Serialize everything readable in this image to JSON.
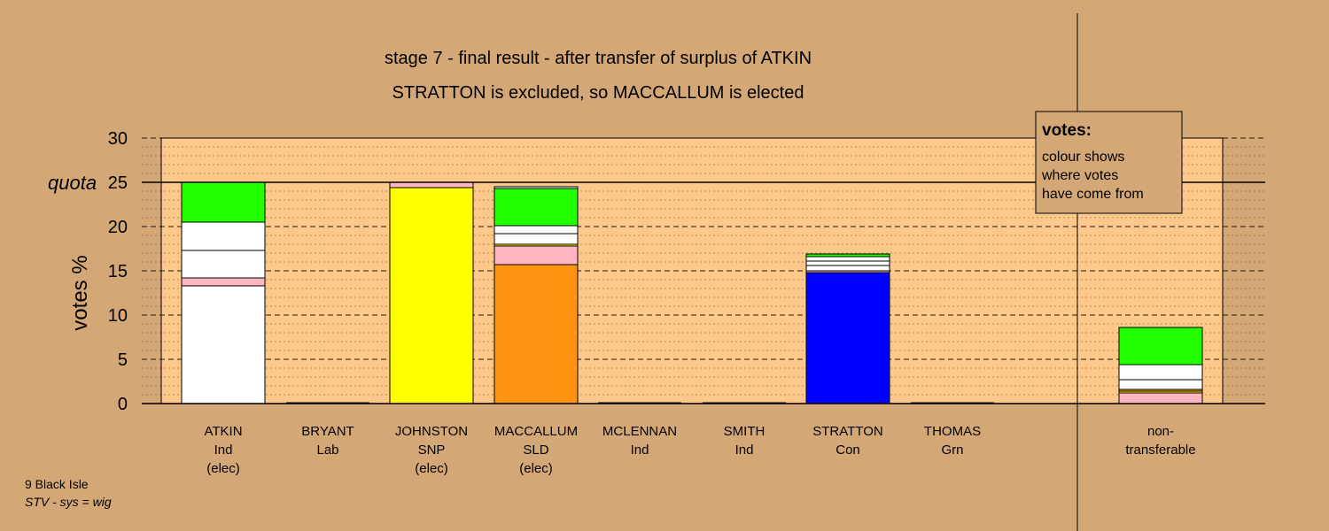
{
  "chart_data": {
    "type": "bar",
    "stacked": true,
    "title": "stage 7 - final result - after transfer of surplus of ATKIN",
    "subtitle": "STRATTON is excluded, so MACCALLUM is elected",
    "ylabel": "votes %",
    "ylim": [
      0,
      30
    ],
    "yticks": [
      0,
      5,
      10,
      15,
      20,
      25,
      30
    ],
    "quota": {
      "label": "quota",
      "value": 25
    },
    "grid": true,
    "categories": [
      {
        "name": "ATKIN",
        "party": "Ind",
        "status": "(elec)"
      },
      {
        "name": "BRYANT",
        "party": "Lab",
        "status": ""
      },
      {
        "name": "JOHNSTON",
        "party": "SNP",
        "status": "(elec)"
      },
      {
        "name": "MACCALLUM",
        "party": "SLD",
        "status": "(elec)"
      },
      {
        "name": "MCLENNAN",
        "party": "Ind",
        "status": ""
      },
      {
        "name": "SMITH",
        "party": "Ind",
        "status": ""
      },
      {
        "name": "STRATTON",
        "party": "Con",
        "status": ""
      },
      {
        "name": "THOMAS",
        "party": "Grn",
        "status": ""
      },
      {
        "name": "non-",
        "party": "transferable",
        "status": ""
      }
    ],
    "stacks": [
      [
        {
          "value": 13.3,
          "color": "#ffffff"
        },
        {
          "value": 0.9,
          "color": "#ffb6c1"
        },
        {
          "value": 3.1,
          "color": "#ffffff"
        },
        {
          "value": 3.2,
          "color": "#ffffff"
        },
        {
          "value": 4.5,
          "color": "#22ff00"
        }
      ],
      [],
      [
        {
          "value": 24.4,
          "color": "#ffff00"
        },
        {
          "value": 0.6,
          "color": "#ffb6c1"
        }
      ],
      [
        {
          "value": 15.7,
          "color": "#ff9410"
        },
        {
          "value": 2.1,
          "color": "#ffb6c1"
        },
        {
          "value": 0.2,
          "color": "#ffff00"
        },
        {
          "value": 1.2,
          "color": "#ffffff"
        },
        {
          "value": 0.9,
          "color": "#ffffff"
        },
        {
          "value": 4.2,
          "color": "#22ff00"
        },
        {
          "value": 0.2,
          "color": "#ffffff"
        }
      ],
      [],
      [],
      [
        {
          "value": 14.8,
          "color": "#0000ff"
        },
        {
          "value": 0.2,
          "color": "#ffb6c1"
        },
        {
          "value": 0.6,
          "color": "#ffffff"
        },
        {
          "value": 0.5,
          "color": "#ffffff"
        },
        {
          "value": 0.5,
          "color": "#ffffff"
        },
        {
          "value": 0.3,
          "color": "#22ff00"
        }
      ],
      [],
      [
        {
          "value": 1.2,
          "color": "#ffb6c1"
        },
        {
          "value": 0.2,
          "color": "#ffff00"
        },
        {
          "value": 0.2,
          "color": "#ff9410"
        },
        {
          "value": 1.1,
          "color": "#ffffff"
        },
        {
          "value": 1.7,
          "color": "#ffffff"
        },
        {
          "value": 4.2,
          "color": "#22ff00"
        }
      ]
    ]
  },
  "legend": {
    "title": "votes:",
    "lines": [
      "colour shows",
      "where votes",
      "have come from"
    ]
  },
  "footer": {
    "area": "9 Black Isle",
    "system": "STV - sys = wig"
  },
  "colors": {
    "background": "#d4a876",
    "plot_area": "#fdc88a"
  }
}
